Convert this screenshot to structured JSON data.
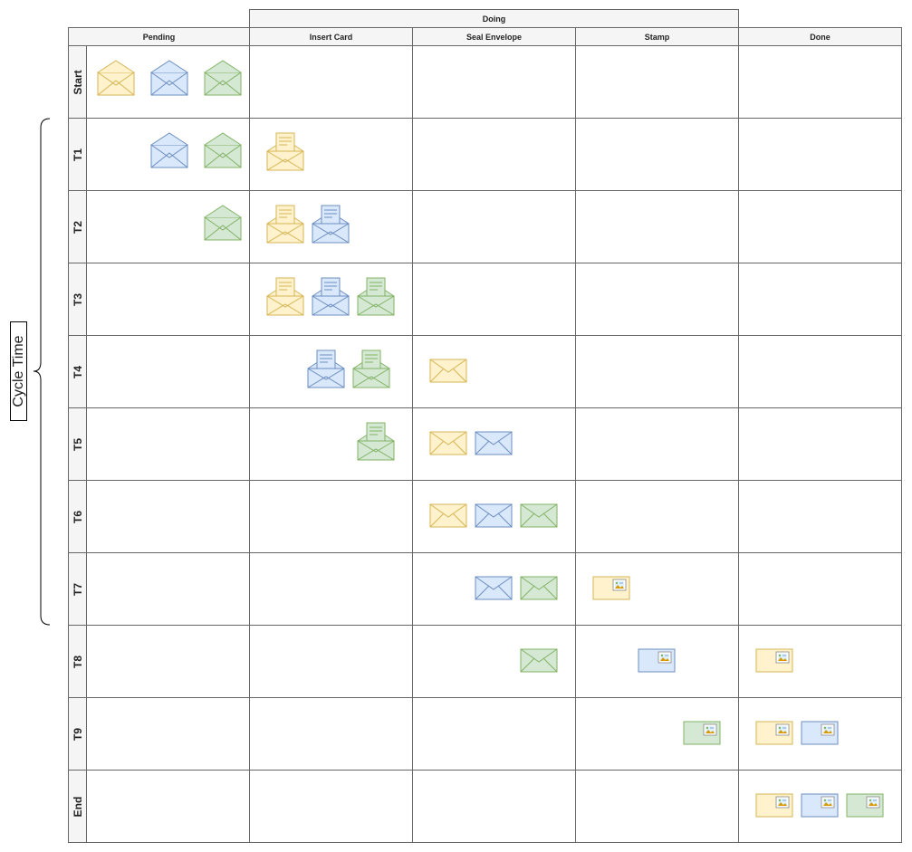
{
  "title": "Doing",
  "columns": [
    "Pending",
    "Insert Card",
    "Seal Envelope",
    "Stamp",
    "Done"
  ],
  "rows": [
    "Start",
    "T1",
    "T2",
    "T3",
    "T4",
    "T5",
    "T6",
    "T7",
    "T8",
    "T9",
    "End"
  ],
  "cycle_label": "Cycle Time",
  "colors": {
    "yellow": {
      "fill": "#fff2cc",
      "stroke": "#d6b656"
    },
    "blue": {
      "fill": "#dae8fc",
      "stroke": "#6c8ebf"
    },
    "green": {
      "fill": "#d5e8d4",
      "stroke": "#82b366"
    }
  },
  "tokens": [
    {
      "row": 0,
      "col": 0,
      "color": "yellow",
      "kind": "open"
    },
    {
      "row": 0,
      "col": 0,
      "color": "blue",
      "kind": "open"
    },
    {
      "row": 0,
      "col": 0,
      "color": "green",
      "kind": "open"
    },
    {
      "row": 1,
      "col": 0,
      "color": "blue",
      "kind": "open"
    },
    {
      "row": 1,
      "col": 0,
      "color": "green",
      "kind": "open"
    },
    {
      "row": 1,
      "col": 1,
      "color": "yellow",
      "kind": "card"
    },
    {
      "row": 2,
      "col": 0,
      "color": "green",
      "kind": "open"
    },
    {
      "row": 2,
      "col": 1,
      "color": "yellow",
      "kind": "card"
    },
    {
      "row": 2,
      "col": 1,
      "color": "blue",
      "kind": "card"
    },
    {
      "row": 3,
      "col": 1,
      "color": "yellow",
      "kind": "card"
    },
    {
      "row": 3,
      "col": 1,
      "color": "blue",
      "kind": "card"
    },
    {
      "row": 3,
      "col": 1,
      "color": "green",
      "kind": "card"
    },
    {
      "row": 4,
      "col": 1,
      "color": "blue",
      "kind": "card"
    },
    {
      "row": 4,
      "col": 1,
      "color": "green",
      "kind": "card"
    },
    {
      "row": 4,
      "col": 2,
      "color": "yellow",
      "kind": "sealed"
    },
    {
      "row": 5,
      "col": 1,
      "color": "green",
      "kind": "card"
    },
    {
      "row": 5,
      "col": 2,
      "color": "yellow",
      "kind": "sealed"
    },
    {
      "row": 5,
      "col": 2,
      "color": "blue",
      "kind": "sealed"
    },
    {
      "row": 6,
      "col": 2,
      "color": "yellow",
      "kind": "sealed"
    },
    {
      "row": 6,
      "col": 2,
      "color": "blue",
      "kind": "sealed"
    },
    {
      "row": 6,
      "col": 2,
      "color": "green",
      "kind": "sealed"
    },
    {
      "row": 7,
      "col": 2,
      "color": "blue",
      "kind": "sealed"
    },
    {
      "row": 7,
      "col": 2,
      "color": "green",
      "kind": "sealed"
    },
    {
      "row": 7,
      "col": 3,
      "color": "yellow",
      "kind": "stamped"
    },
    {
      "row": 8,
      "col": 2,
      "color": "green",
      "kind": "sealed"
    },
    {
      "row": 8,
      "col": 3,
      "color": "blue",
      "kind": "stamped"
    },
    {
      "row": 8,
      "col": 4,
      "color": "yellow",
      "kind": "stamped"
    },
    {
      "row": 9,
      "col": 3,
      "color": "green",
      "kind": "stamped"
    },
    {
      "row": 9,
      "col": 4,
      "color": "yellow",
      "kind": "stamped"
    },
    {
      "row": 9,
      "col": 4,
      "color": "blue",
      "kind": "stamped"
    },
    {
      "row": 10,
      "col": 4,
      "color": "yellow",
      "kind": "stamped"
    },
    {
      "row": 10,
      "col": 4,
      "color": "blue",
      "kind": "stamped"
    },
    {
      "row": 10,
      "col": 4,
      "color": "green",
      "kind": "stamped"
    }
  ]
}
